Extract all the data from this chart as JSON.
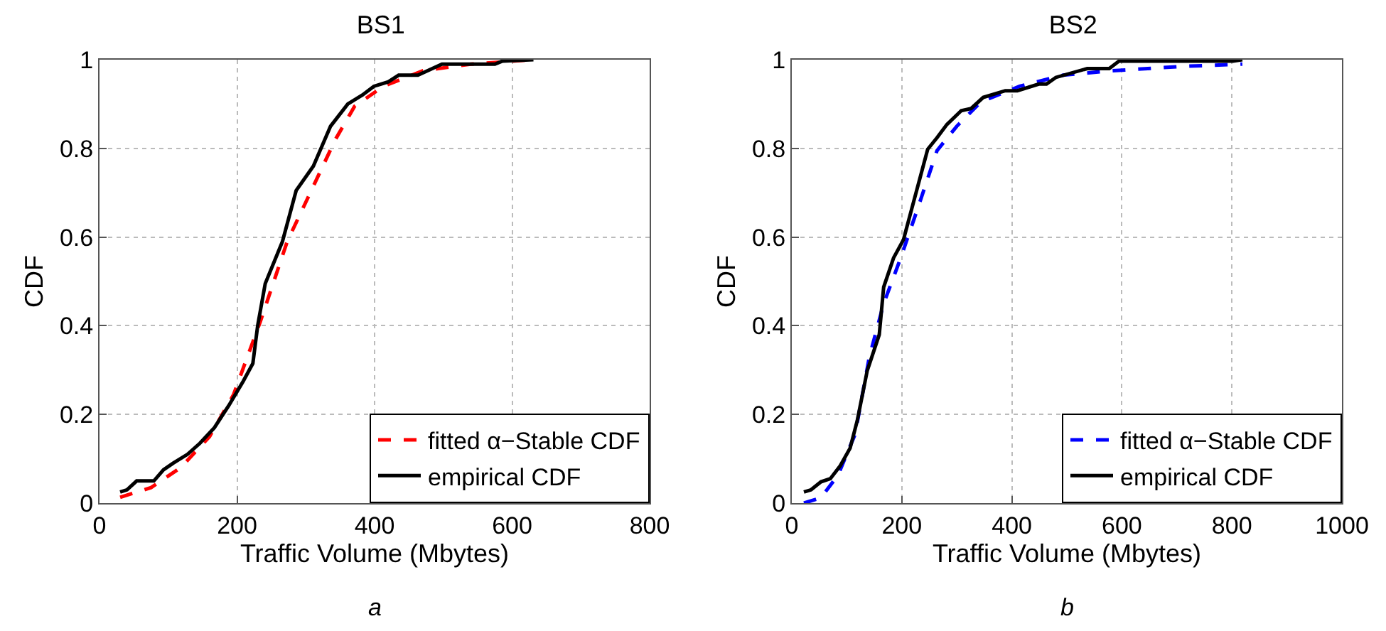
{
  "chart_data": [
    {
      "type": "line",
      "title": "BS1",
      "xlabel": "Traffic Volume (Mbytes)",
      "ylabel": "CDF",
      "annotations": [
        "a"
      ],
      "xlim": [
        0,
        800
      ],
      "xticks": [
        0,
        200,
        400,
        600,
        800
      ],
      "ylim": [
        0,
        1
      ],
      "yticks": [
        0,
        0.2,
        0.4,
        0.6,
        0.8,
        1
      ],
      "grid": true,
      "legend": "bottom right",
      "marker": "none",
      "series": [
        {
          "name": "fitted α−Stable CDF",
          "color": "#ff0000",
          "line_style": "dashed",
          "x": [
            30,
            75,
            118,
            160,
            195,
            234,
            273,
            308,
            343,
            371,
            413,
            470,
            540,
            631
          ],
          "values": [
            0.013,
            0.035,
            0.08,
            0.15,
            0.245,
            0.41,
            0.59,
            0.705,
            0.82,
            0.895,
            0.94,
            0.975,
            0.99,
            1.0
          ]
        },
        {
          "name": "empirical CDF",
          "color": "#000000",
          "line_style": "solid",
          "x": [
            30,
            40,
            54,
            79,
            93,
            107,
            128,
            146,
            167,
            188,
            209,
            223,
            230,
            241,
            266,
            286,
            311,
            336,
            361,
            382,
            399,
            420,
            435,
            463,
            498,
            575,
            586,
            631
          ],
          "values": [
            0.025,
            0.03,
            0.05,
            0.05,
            0.075,
            0.09,
            0.11,
            0.135,
            0.17,
            0.22,
            0.275,
            0.315,
            0.4,
            0.495,
            0.59,
            0.705,
            0.76,
            0.85,
            0.9,
            0.92,
            0.94,
            0.95,
            0.965,
            0.965,
            0.99,
            0.99,
            0.997,
            1.0
          ]
        }
      ]
    },
    {
      "type": "line",
      "title": "BS2",
      "xlabel": "Traffic Volume (Mbytes)",
      "ylabel": "CDF",
      "annotations": [
        "b"
      ],
      "xlim": [
        0,
        1000
      ],
      "xticks": [
        0,
        200,
        400,
        600,
        800,
        1000
      ],
      "ylim": [
        0,
        1
      ],
      "yticks": [
        0,
        0.2,
        0.4,
        0.6,
        0.8,
        1
      ],
      "grid": true,
      "legend": "bottom right",
      "marker": "none",
      "series": [
        {
          "name": "fitted α−Stable CDF",
          "color": "#0000ff",
          "line_style": "dashed",
          "x": [
            22,
            53,
            84,
            115,
            141,
            167,
            198,
            229,
            264,
            300,
            344,
            414,
            493,
            581,
            713,
            819
          ],
          "values": [
            0.0,
            0.012,
            0.063,
            0.155,
            0.33,
            0.45,
            0.553,
            0.665,
            0.795,
            0.85,
            0.905,
            0.94,
            0.965,
            0.975,
            0.985,
            0.99
          ]
        },
        {
          "name": "empirical CDF",
          "color": "#000000",
          "line_style": "solid",
          "x": [
            22,
            35,
            53,
            70,
            88,
            106,
            119,
            137,
            159,
            167,
            185,
            203,
            225,
            247,
            264,
            282,
            308,
            326,
            348,
            388,
            410,
            449,
            463,
            480,
            537,
            577,
            595,
            802,
            819
          ],
          "values": [
            0.025,
            0.03,
            0.048,
            0.055,
            0.084,
            0.124,
            0.186,
            0.298,
            0.38,
            0.487,
            0.553,
            0.594,
            0.696,
            0.798,
            0.824,
            0.854,
            0.885,
            0.89,
            0.915,
            0.93,
            0.93,
            0.945,
            0.945,
            0.96,
            0.98,
            0.98,
            0.997,
            0.997,
            1.0
          ]
        }
      ]
    }
  ]
}
